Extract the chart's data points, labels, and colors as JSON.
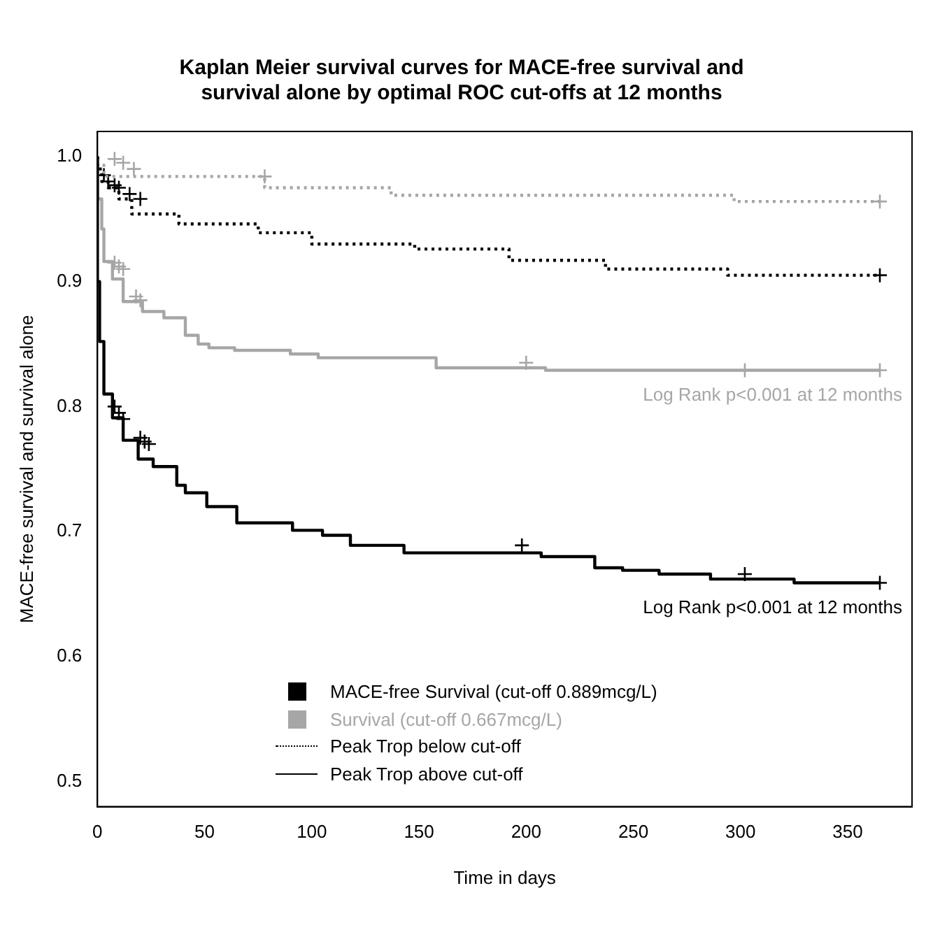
{
  "chart_data": {
    "type": "step",
    "title": "Kaplan Meier survival curves for MACE-free survival and\nsurvival alone by optimal ROC cut-offs at 12 months",
    "xlabel": "Time in days",
    "ylabel": "MACE-free survival and survival alone",
    "xlim": [
      0,
      380
    ],
    "xticks": [
      0,
      50,
      100,
      150,
      200,
      250,
      300,
      350
    ],
    "ylim": [
      0.48,
      1.02
    ],
    "yticks": [
      {
        "value": 0.5,
        "label": "0.5"
      },
      {
        "value": 0.6,
        "label": "0.6"
      },
      {
        "value": 0.7,
        "label": "0.7"
      },
      {
        "value": 0.8,
        "label": "0.8"
      },
      {
        "value": 0.9,
        "label": "0.9"
      },
      {
        "value": 1,
        "label": "1.0"
      }
    ],
    "grid": false,
    "series": [
      {
        "color": "#000000",
        "line_style": "dotted",
        "x": [
          0,
          2,
          5,
          10,
          16,
          38,
          75,
          100,
          148,
          192,
          237,
          294,
          365
        ],
        "values": [
          1,
          0.99,
          0.98,
          0.975,
          0.966,
          0.954,
          0.946,
          0.939,
          0.93,
          0.926,
          0.917,
          0.91,
          0.905
        ]
      },
      {
        "color": "#000000",
        "line_style": "solid",
        "x": [
          0,
          1,
          3,
          7,
          12,
          19,
          26,
          37,
          41,
          51,
          65,
          91,
          105,
          118,
          143,
          207,
          232,
          245,
          262,
          286,
          325,
          344,
          365
        ],
        "values": [
          1,
          0.9,
          0.852,
          0.81,
          0.791,
          0.773,
          0.758,
          0.752,
          0.737,
          0.731,
          0.72,
          0.707,
          0.701,
          0.697,
          0.689,
          0.683,
          0.68,
          0.671,
          0.669,
          0.666,
          0.662,
          0.659,
          0.659
        ]
      },
      {
        "color": "#a6a6a6",
        "line_style": "dotted",
        "x": [
          0,
          3,
          78,
          137,
          297,
          365
        ],
        "values": [
          1,
          0.993,
          0.984,
          0.975,
          0.969,
          0.964
        ]
      },
      {
        "color": "#a6a6a6",
        "line_style": "solid",
        "x": [
          0,
          2,
          3,
          7,
          12,
          21,
          31,
          41,
          47,
          52,
          64,
          90,
          103,
          158,
          209,
          344,
          365
        ],
        "values": [
          1,
          0.966,
          0.942,
          0.916,
          0.902,
          0.884,
          0.876,
          0.871,
          0.857,
          0.85,
          0.847,
          0.845,
          0.842,
          0.839,
          0.831,
          0.829,
          0.829
        ]
      },
      {
        "type": "scatter",
        "color": "#000000",
        "marker": "cross",
        "x": [
          3,
          5,
          8,
          10,
          15,
          20,
          365
        ],
        "values": [
          0.985,
          0.98,
          0.977,
          0.975,
          0.97,
          0.966,
          0.905
        ]
      },
      {
        "type": "scatter",
        "color": "#000000",
        "marker": "cross",
        "x": [
          8,
          10,
          12,
          20,
          22,
          24,
          198,
          302,
          365
        ],
        "values": [
          0.8,
          0.795,
          0.79,
          0.775,
          0.772,
          0.77,
          0.689,
          0.666,
          0.659
        ]
      },
      {
        "type": "scatter",
        "color": "#a6a6a6",
        "marker": "cross",
        "x": [
          8,
          12,
          17,
          78,
          365
        ],
        "values": [
          0.998,
          0.995,
          0.99,
          0.984,
          0.964
        ]
      },
      {
        "type": "scatter",
        "color": "#a6a6a6",
        "marker": "cross",
        "x": [
          8,
          10,
          12,
          18,
          20,
          200,
          302,
          365
        ],
        "values": [
          0.915,
          0.912,
          0.91,
          0.888,
          0.885,
          0.835,
          0.829,
          0.829
        ]
      }
    ],
    "annotations": [
      "Log Rank p<0.001 at 12 months",
      "Log Rank p<0.001 at 12 months",
      "MACE-free Survival (cut-off 0.889mcg/L)",
      "Survival (cut-off 0.667mcg/L)",
      "Peak Trop below cut-off",
      "Peak Trop above cut-off"
    ]
  }
}
